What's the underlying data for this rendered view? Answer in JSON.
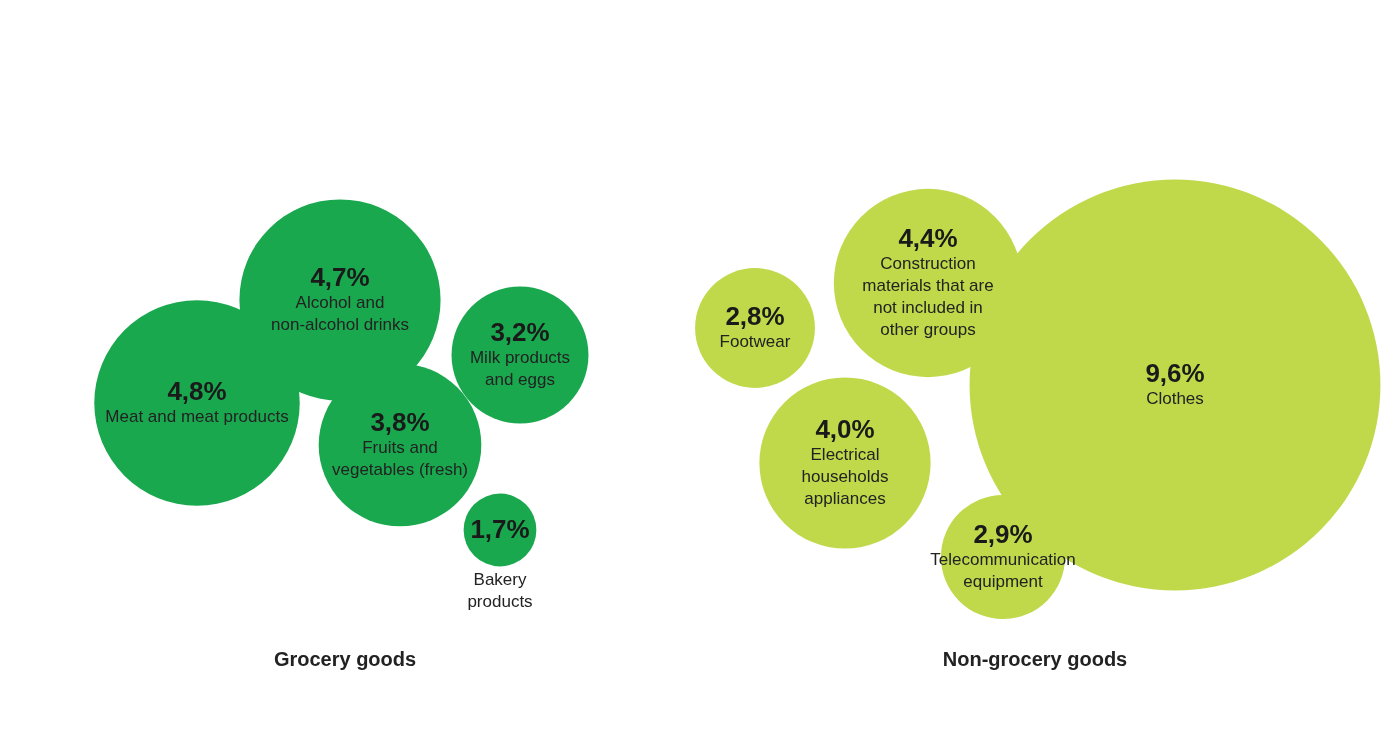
{
  "chart_data": [
    {
      "type": "other",
      "title": "Grocery goods",
      "categories": [
        "Meat and meat products",
        "Alcohol and non-alcohol drinks",
        "Fruits and vegetables (fresh)",
        "Milk products and eggs",
        "Bakery products"
      ],
      "values": [
        4.8,
        4.7,
        3.8,
        3.2,
        1.7
      ],
      "value_labels": [
        "4,8%",
        "4,7%",
        "3,8%",
        "3,2%",
        "1,7%"
      ],
      "colors": [
        "#1aa84f",
        "#1aa84f",
        "#1aa84f",
        "#1aa84f",
        "#1aa84f"
      ]
    },
    {
      "type": "other",
      "title": "Non-grocery goods",
      "categories": [
        "Footwear",
        "Construction materials that are not included in other groups",
        "Clothes",
        "Electrical households appliances",
        "Telecommunication equipment"
      ],
      "values": [
        2.8,
        4.4,
        9.6,
        4.0,
        2.9
      ],
      "value_labels": [
        "2,8%",
        "4,4%",
        "9,6%",
        "4,0%",
        "2,9%"
      ],
      "colors": [
        "#bfd94a",
        "#bfd94a",
        "#bfd94a",
        "#bfd94a",
        "#bfd94a"
      ]
    }
  ]
}
